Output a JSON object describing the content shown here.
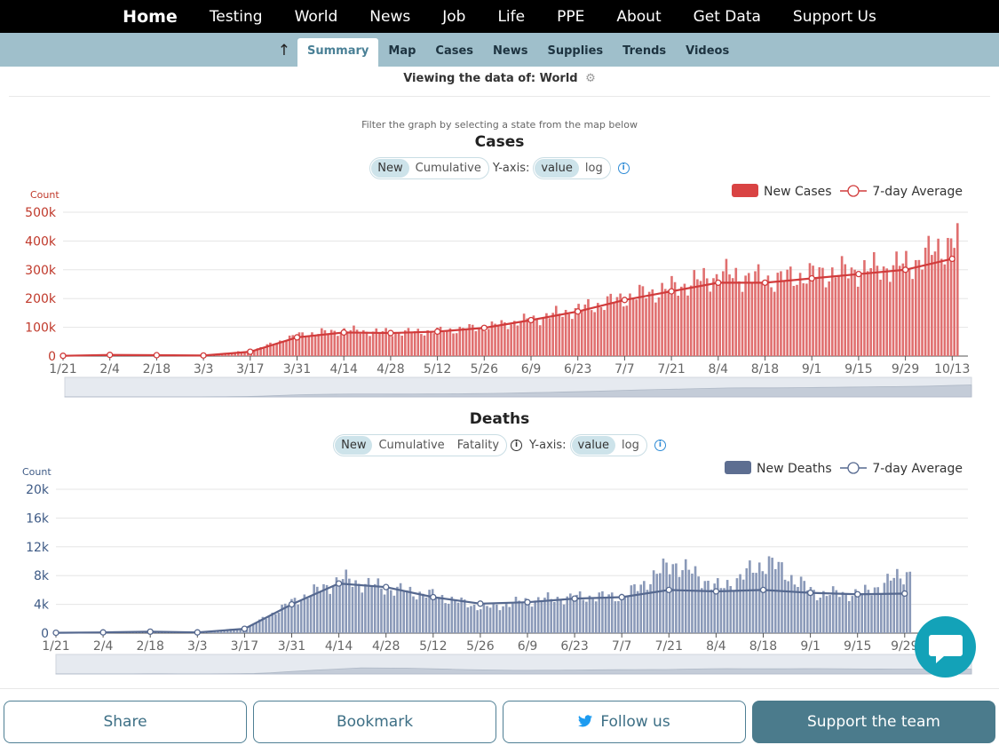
{
  "nav": {
    "home": "Home",
    "items": [
      "Testing",
      "World",
      "News",
      "Job",
      "Life",
      "PPE",
      "About",
      "Get Data",
      "Support Us"
    ]
  },
  "subnav": {
    "up_icon": "arrow-up-icon",
    "tabs": [
      "Summary",
      "Map",
      "Cases",
      "News",
      "Supplies",
      "Trends",
      "Videos"
    ],
    "active": "Summary"
  },
  "viewing": {
    "label": "Viewing the data of:",
    "value": "World",
    "icon": "gear-icon"
  },
  "filter_hint": "Filter the graph by selecting a state from the map below",
  "cases": {
    "title": "Cases",
    "modes": [
      "New",
      "Cumulative"
    ],
    "active_mode": "New",
    "yaxis_label": "Y-axis:",
    "scales": [
      "value",
      "log"
    ],
    "active_scale": "value",
    "ylabel": "Count",
    "legend": [
      "New Cases",
      "7-day Average"
    ],
    "colors": {
      "bar": "#e06f6f",
      "line": "#d13b3b",
      "legend": "#d94343"
    }
  },
  "deaths": {
    "title": "Deaths",
    "modes": [
      "New",
      "Cumulative",
      "Fatality"
    ],
    "active_mode": "New",
    "yaxis_label": "Y-axis:",
    "scales": [
      "value",
      "log"
    ],
    "active_scale": "value",
    "ylabel": "Count",
    "legend": [
      "New Deaths",
      "7-day Average"
    ],
    "colors": {
      "bar": "#8a99b8",
      "line": "#55688f",
      "legend": "#5d6e91"
    }
  },
  "chart_data": [
    {
      "type": "bar",
      "title": "Cases",
      "ylabel": "Count",
      "ylim": [
        0,
        500000
      ],
      "yticks": [
        "0",
        "100k",
        "200k",
        "300k",
        "400k",
        "500k"
      ],
      "xticks": [
        "1/21",
        "2/4",
        "2/18",
        "3/3",
        "3/17",
        "3/31",
        "4/14",
        "4/28",
        "5/12",
        "5/26",
        "6/9",
        "6/23",
        "7/7",
        "7/21",
        "8/4",
        "8/18",
        "9/1",
        "9/15",
        "9/29",
        "10/13"
      ],
      "series": [
        {
          "name": "New Cases",
          "type": "bar"
        },
        {
          "name": "7-day Average",
          "type": "line"
        }
      ],
      "avg_at_ticks": [
        1000,
        4000,
        3000,
        2000,
        15000,
        65000,
        82000,
        80000,
        85000,
        98000,
        125000,
        155000,
        195000,
        225000,
        255000,
        255000,
        270000,
        285000,
        300000,
        338000
      ],
      "daily_at_ticks": [
        500,
        2500,
        2000,
        1500,
        20000,
        75000,
        90000,
        82000,
        88000,
        102000,
        130000,
        165000,
        205000,
        240000,
        285000,
        265000,
        285000,
        300000,
        320000,
        410000
      ],
      "grid": true
    },
    {
      "type": "bar",
      "title": "Deaths",
      "ylabel": "Count",
      "ylim": [
        0,
        20000
      ],
      "yticks": [
        "0",
        "4k",
        "8k",
        "12k",
        "16k",
        "20k"
      ],
      "xticks": [
        "1/21",
        "2/4",
        "2/18",
        "3/3",
        "3/17",
        "3/31",
        "4/14",
        "4/28",
        "5/12",
        "5/26",
        "6/9",
        "6/23",
        "7/7",
        "7/21",
        "8/4",
        "8/18",
        "9/1",
        "9/15",
        "9/29"
      ],
      "series": [
        {
          "name": "New Deaths",
          "type": "bar"
        },
        {
          "name": "7-day Average",
          "type": "line"
        }
      ],
      "avg_at_ticks": [
        50,
        100,
        200,
        100,
        600,
        4000,
        6900,
        6400,
        5000,
        4100,
        4300,
        4800,
        5000,
        6000,
        5800,
        6000,
        5600,
        5400,
        5500
      ],
      "daily_at_ticks": [
        50,
        100,
        200,
        100,
        700,
        4500,
        7500,
        6200,
        5200,
        3500,
        4600,
        5000,
        5200,
        9800,
        6200,
        10000,
        5500,
        5500,
        8600
      ],
      "grid": true
    }
  ],
  "chat_icon": "chat-bubble-icon",
  "footer": {
    "share": "Share",
    "bookmark": "Bookmark",
    "follow": "Follow us",
    "twitter_icon": "twitter-icon",
    "support": "Support the team"
  }
}
